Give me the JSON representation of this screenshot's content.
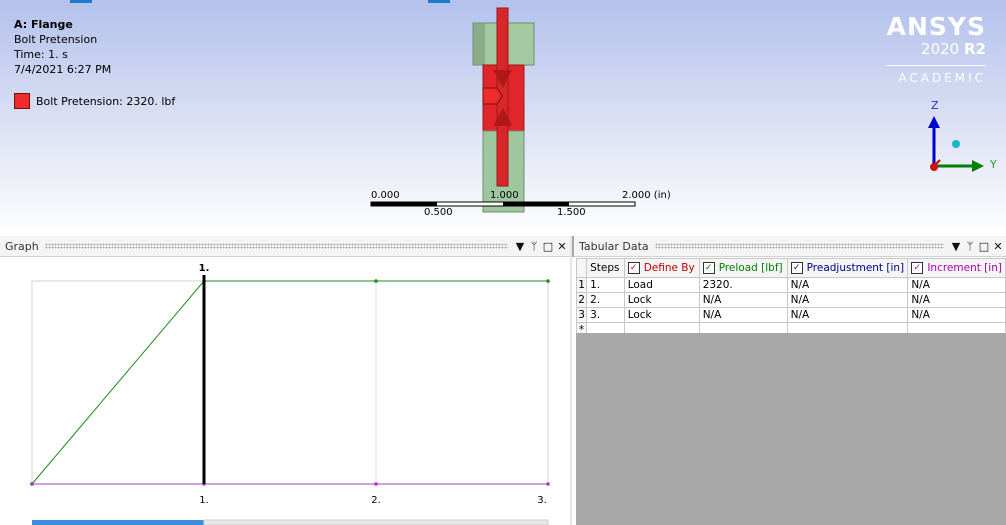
{
  "viewport": {
    "title": "A: Flange",
    "subtitle": "Bolt Pretension",
    "time": "Time: 1. s",
    "date": "7/4/2021 6:27 PM",
    "legend_label": "Bolt Pretension: 2320. lbf",
    "legend_color": "#ef2b2b"
  },
  "brand": {
    "name": "ANSYS",
    "version": "2020",
    "release": "R2",
    "edition": "ACADEMIC"
  },
  "triad": {
    "z": "Z",
    "y": "Y"
  },
  "scale_bar": {
    "labels_top": [
      "0.000",
      "1.000",
      "2.000 (in)"
    ],
    "labels_bottom": [
      "0.500",
      "1.500"
    ]
  },
  "graph": {
    "title": "Graph",
    "step_marker_label": "1.",
    "x_ticks": [
      "1.",
      "2.",
      "3."
    ]
  },
  "tabular": {
    "title": "Tabular Data",
    "columns": [
      "Steps",
      "Define By",
      "Preload [lbf]",
      "Preadjustment [in]",
      "Increment [in]"
    ],
    "rows": [
      {
        "index": "1",
        "steps": "1.",
        "define_by": "Load",
        "preload": "2320.",
        "preadjustment": "N/A",
        "increment": "N/A"
      },
      {
        "index": "2",
        "steps": "2.",
        "define_by": "Lock",
        "preload": "N/A",
        "preadjustment": "N/A",
        "increment": "N/A"
      },
      {
        "index": "3",
        "steps": "3.",
        "define_by": "Lock",
        "preload": "N/A",
        "preadjustment": "N/A",
        "increment": "N/A"
      }
    ],
    "new_row_marker": "*"
  },
  "panel_controls": {
    "dropdown": "▼",
    "pin": "ᛘ",
    "maximize": "□",
    "close": "✕"
  },
  "colors": {
    "preload_line": "#1e8c1e",
    "zero_line": "#a040c0",
    "current_step_line": "#000000",
    "bolt_red": "#e0262a",
    "bolt_green": "#9fc79f"
  },
  "chart_data": {
    "type": "line",
    "x": [
      0,
      1,
      2,
      3
    ],
    "xlim": [
      0,
      3
    ],
    "x_ticks": [
      "1.",
      "2.",
      "3."
    ],
    "current_step": 1,
    "series": [
      {
        "values": [
          0,
          2320,
          2320,
          2320
        ]
      },
      {
        "values": [
          0,
          0,
          0,
          0
        ]
      }
    ],
    "grid": true
  }
}
